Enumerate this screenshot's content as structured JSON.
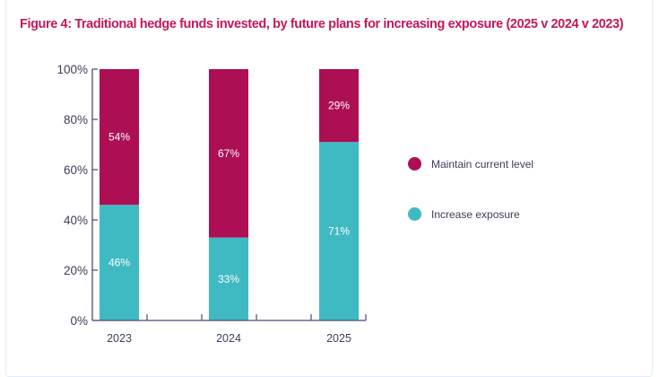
{
  "chart_data": {
    "type": "bar",
    "stacked": true,
    "title": "Figure 4: Traditional hedge funds invested, by future plans for increasing exposure (2025 v 2024 v 2023)",
    "categories": [
      "2023",
      "2024",
      "2025"
    ],
    "series": [
      {
        "name": "Increase exposure",
        "values": [
          46,
          33,
          71
        ],
        "labels": [
          "46%",
          "33%",
          "71%"
        ],
        "color": "#3fbac2"
      },
      {
        "name": "Maintain current level",
        "values": [
          54,
          67,
          29
        ],
        "labels": [
          "54%",
          "67%",
          "29%"
        ],
        "color": "#ad0f55"
      }
    ],
    "ylim": [
      0,
      100
    ],
    "yticks": [
      "0%",
      "20%",
      "40%",
      "60%",
      "80%",
      "100%"
    ],
    "grid": false,
    "legend_position": "right",
    "axis_color": "#4a4a7a",
    "title_color": "#c2185b"
  }
}
